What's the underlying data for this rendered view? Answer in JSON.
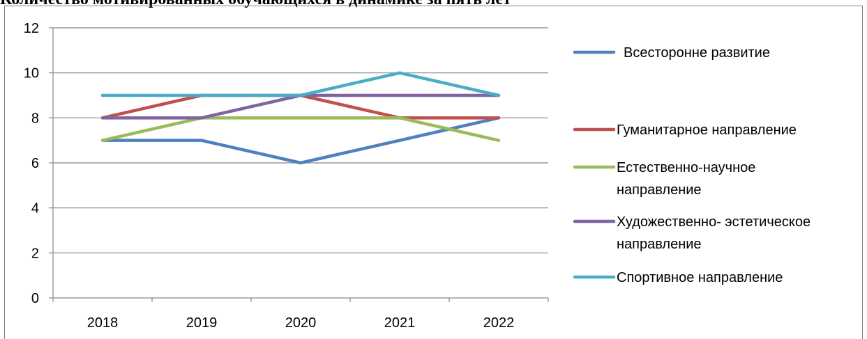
{
  "chart_data": {
    "type": "line",
    "title": "Количество мотивированных обучающихся в динамике за пять лет",
    "xlabel": "",
    "ylabel": "",
    "x": [
      "2018",
      "2019",
      "2020",
      "2021",
      "2022"
    ],
    "ylim": [
      0,
      12
    ],
    "yticks": [
      "0",
      "2",
      "4",
      "6",
      "8",
      "10",
      "12"
    ],
    "grid": true,
    "legend_position": "right",
    "series": [
      {
        "name": "Всесторонне развитие",
        "legend_lines": [
          "Всесторонне развитие"
        ],
        "color": "#4f81bd",
        "values": [
          7,
          7,
          6,
          7,
          8
        ]
      },
      {
        "name": "Гуманитарное  направление",
        "legend_lines": [
          "Гуманитарное  направление"
        ],
        "color": "#c0504d",
        "values": [
          8,
          9,
          9,
          8,
          8
        ]
      },
      {
        "name": "Естественно-научное направление",
        "legend_lines": [
          "Естественно-научное",
          "направление"
        ],
        "color": "#9bbb59",
        "values": [
          7,
          8,
          8,
          8,
          7
        ]
      },
      {
        "name": "Художественно- эстетическое направление",
        "legend_lines": [
          "Художественно- эстетическое",
          "направление"
        ],
        "color": "#8064a2",
        "values": [
          8,
          8,
          9,
          9,
          9
        ]
      },
      {
        "name": "Спортивное направление",
        "legend_lines": [
          "Спортивное направление"
        ],
        "color": "#4bacc6",
        "values": [
          9,
          9,
          9,
          10,
          9
        ]
      }
    ]
  }
}
